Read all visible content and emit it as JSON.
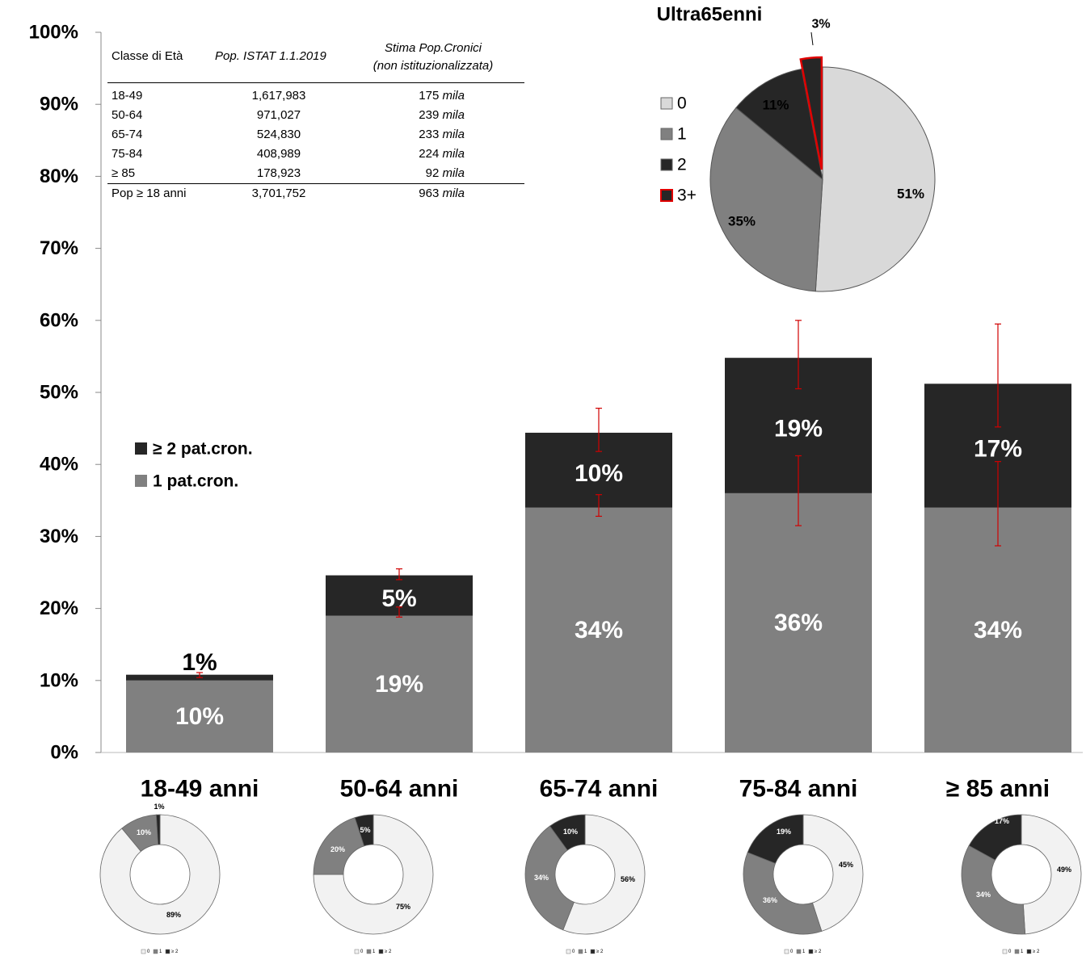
{
  "chart_data": [
    {
      "type": "bar",
      "stacked": true,
      "categories": [
        "18-49 anni",
        "50-64 anni",
        "65-74 anni",
        "75-84 anni",
        "≥ 85 anni"
      ],
      "series": [
        {
          "name": "1 pat.cron.",
          "values": [
            10,
            19,
            34,
            36,
            34
          ],
          "labels": [
            "10%",
            "19%",
            "34%",
            "36%",
            "34%"
          ],
          "color": "#808080",
          "error_bars": [
            null,
            [
              18.8,
              20.2
            ],
            [
              32.8,
              35.8
            ],
            [
              31.5,
              41.2
            ],
            [
              28.7,
              40.4
            ]
          ]
        },
        {
          "name": "≥ 2 pat.cron.",
          "values": [
            1,
            5,
            10,
            19,
            17
          ],
          "labels": [
            "1%",
            "5%",
            "10%",
            "19%",
            "17%"
          ],
          "color": "#262626",
          "error_bars": [
            [
              10.4,
              11.1
            ],
            [
              24.0,
              25.5
            ],
            [
              41.8,
              47.8
            ],
            [
              50.5,
              60.0
            ],
            [
              45.2,
              59.5
            ]
          ]
        }
      ],
      "totals": [
        10.8,
        24.6,
        44.4,
        54.8,
        51.2
      ],
      "ylim": [
        0,
        100
      ],
      "yticks": [
        "0%",
        "10%",
        "20%",
        "30%",
        "40%",
        "50%",
        "60%",
        "70%",
        "80%",
        "90%",
        "100%"
      ],
      "legend_position": "middle-left",
      "grid": false
    },
    {
      "type": "pie",
      "title": "Ultra65enni",
      "slices": [
        {
          "name": "0",
          "value": 51,
          "label": "51%",
          "color": "#d9d9d9"
        },
        {
          "name": "1",
          "value": 35,
          "label": "35%",
          "color": "#808080"
        },
        {
          "name": "2",
          "value": 11,
          "label": "11%",
          "color": "#262626"
        },
        {
          "name": "3+",
          "value": 3,
          "label": "3%",
          "color": "#262626",
          "outline": "#e00000",
          "exploded": true
        }
      ],
      "legend_position": "left"
    },
    {
      "type": "pie",
      "donut": true,
      "groups": [
        {
          "slices": [
            {
              "name": "0",
              "value": 89,
              "label": "89%"
            },
            {
              "name": "1",
              "value": 10,
              "label": "10%"
            },
            {
              "name": "≥ 2",
              "value": 1,
              "label": "1%"
            }
          ]
        },
        {
          "slices": [
            {
              "name": "0",
              "value": 75,
              "label": "75%"
            },
            {
              "name": "1",
              "value": 20,
              "label": "20%"
            },
            {
              "name": "≥ 2",
              "value": 5,
              "label": "5%"
            }
          ]
        },
        {
          "slices": [
            {
              "name": "0",
              "value": 56,
              "label": "56%"
            },
            {
              "name": "1",
              "value": 34,
              "label": "34%"
            },
            {
              "name": "≥ 2",
              "value": 10,
              "label": "10%"
            }
          ]
        },
        {
          "slices": [
            {
              "name": "0",
              "value": 45,
              "label": "45%"
            },
            {
              "name": "1",
              "value": 36,
              "label": "36%"
            },
            {
              "name": "≥ 2",
              "value": 19,
              "label": "19%"
            }
          ]
        },
        {
          "slices": [
            {
              "name": "0",
              "value": 49,
              "label": "49%"
            },
            {
              "name": "1",
              "value": 34,
              "label": "34%"
            },
            {
              "name": "≥ 2",
              "value": 17,
              "label": "17%"
            }
          ]
        }
      ],
      "colors": [
        "#f2f2f2",
        "#808080",
        "#262626"
      ],
      "legend": [
        "0",
        "1",
        "≥ 2"
      ]
    }
  ],
  "table": {
    "headers": [
      "Classe di Età",
      "Pop. ISTAT 1.1.2019",
      "Stima Pop.Cronici",
      "(non istituzionalizzata)"
    ],
    "rows": [
      {
        "age": "18-49",
        "pop": "1,617,983",
        "est": "175",
        "unit": "mila"
      },
      {
        "age": "50-64",
        "pop": "971,027",
        "est": "239",
        "unit": "mila"
      },
      {
        "age": "65-74",
        "pop": "524,830",
        "est": "233",
        "unit": "mila"
      },
      {
        "age": "75-84",
        "pop": "408,989",
        "est": "224",
        "unit": "mila"
      },
      {
        "age": "≥ 85",
        "pop": "178,923",
        "est": "92",
        "unit": "mila"
      }
    ],
    "total": {
      "age": "Pop ≥ 18 anni",
      "pop": "3,701,752",
      "est": "963",
      "unit": "mila"
    }
  }
}
